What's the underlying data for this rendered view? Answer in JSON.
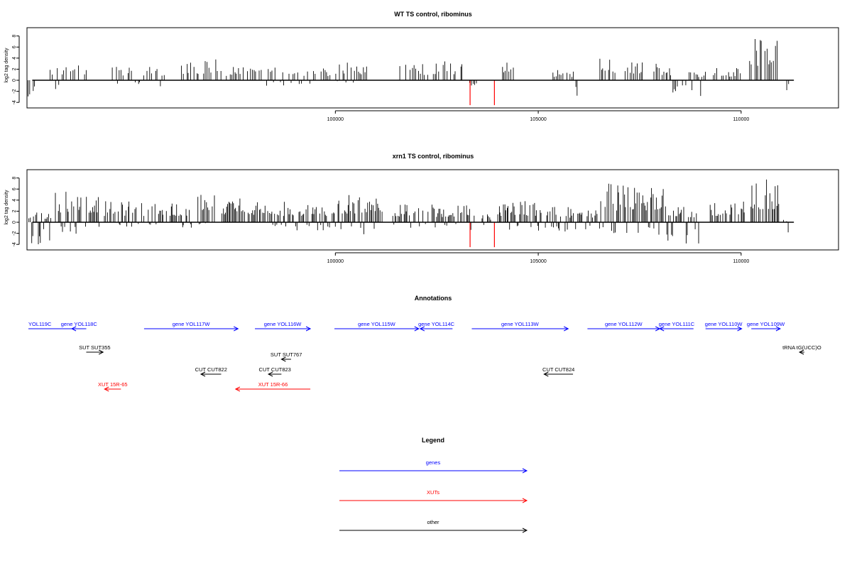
{
  "colors": {
    "gene": "#0000ff",
    "xut": "#ff0000",
    "other": "#000000",
    "highlight": "#ff0000",
    "bar": "#000000"
  },
  "chart_data": [
    {
      "type": "bar",
      "title": "WT TS control, ribominus",
      "ylabel": "log2 tag density",
      "xlim": [
        92400,
        112400
      ],
      "ylim": [
        -5,
        9.5
      ],
      "x_ticks": [
        100000,
        105000,
        110000
      ],
      "x_tick_labels": [
        "100000",
        "105000",
        "110000"
      ],
      "y_ticks": [
        -4,
        -2,
        0,
        2,
        4,
        6,
        8
      ],
      "y_tick_labels": [
        "-4",
        "-2",
        "0",
        "2",
        "4",
        "6",
        "8"
      ],
      "highlight_positions": [
        103320,
        103920
      ],
      "highlight_values": [
        -4.5,
        -4.5
      ],
      "regions": [
        {
          "start": 92420,
          "end": 92620,
          "min": -3.6,
          "max": 0
        },
        {
          "start": 92960,
          "end": 93900,
          "min": -2.5,
          "max": 3.2
        },
        {
          "start": 94500,
          "end": 95800,
          "min": -1.2,
          "max": 2.5
        },
        {
          "start": 96200,
          "end": 97200,
          "min": 0.3,
          "max": 3.8
        },
        {
          "start": 97300,
          "end": 98200,
          "min": 0.2,
          "max": 2.5
        },
        {
          "start": 98300,
          "end": 99900,
          "min": -1.0,
          "max": 2.5
        },
        {
          "start": 100000,
          "end": 100800,
          "min": -0.5,
          "max": 3.5
        },
        {
          "start": 101500,
          "end": 102300,
          "min": 0.5,
          "max": 3.0
        },
        {
          "start": 102400,
          "end": 103200,
          "min": 0.5,
          "max": 3.5
        },
        {
          "start": 103300,
          "end": 103500,
          "min": -1.5,
          "max": 0
        },
        {
          "start": 104100,
          "end": 104500,
          "min": 0.5,
          "max": 3.5
        },
        {
          "start": 105300,
          "end": 105900,
          "min": 0.5,
          "max": 2.0
        },
        {
          "start": 105900,
          "end": 106000,
          "min": -3.2,
          "max": 0
        },
        {
          "start": 106500,
          "end": 107600,
          "min": 0.5,
          "max": 4.0
        },
        {
          "start": 107800,
          "end": 108300,
          "min": 0.5,
          "max": 3.0
        },
        {
          "start": 108300,
          "end": 108700,
          "min": -3.0,
          "max": 0
        },
        {
          "start": 108700,
          "end": 109200,
          "min": -3.0,
          "max": 1.8
        },
        {
          "start": 109300,
          "end": 110000,
          "min": 0.2,
          "max": 2.2
        },
        {
          "start": 110200,
          "end": 110950,
          "min": 0.5,
          "max": 8.5
        },
        {
          "start": 111100,
          "end": 111200,
          "min": -2.0,
          "max": 0
        }
      ]
    },
    {
      "type": "bar",
      "title": "xrn1 TS control, ribominus",
      "ylabel": "log2 tag density",
      "xlim": [
        92400,
        112400
      ],
      "ylim": [
        -5,
        9.5
      ],
      "x_ticks": [
        100000,
        105000,
        110000
      ],
      "x_tick_labels": [
        "100000",
        "105000",
        "110000"
      ],
      "y_ticks": [
        -4,
        -2,
        0,
        2,
        4,
        6,
        8
      ],
      "y_tick_labels": [
        "-4",
        "-2",
        "0",
        "2",
        "4",
        "6",
        "8"
      ],
      "highlight_positions": [
        103320,
        103920
      ],
      "highlight_values": [
        -4.5,
        -4.5
      ],
      "regions": [
        {
          "start": 92420,
          "end": 93000,
          "min": -4.0,
          "max": 2.0
        },
        {
          "start": 93100,
          "end": 94200,
          "min": -2.5,
          "max": 5.8
        },
        {
          "start": 94300,
          "end": 96500,
          "min": -1.0,
          "max": 3.8
        },
        {
          "start": 96600,
          "end": 97100,
          "min": -0.5,
          "max": 5.5
        },
        {
          "start": 97200,
          "end": 98400,
          "min": 0.2,
          "max": 4.5
        },
        {
          "start": 98400,
          "end": 99800,
          "min": -1.5,
          "max": 3.8
        },
        {
          "start": 99800,
          "end": 101200,
          "min": -2.5,
          "max": 5.2
        },
        {
          "start": 101400,
          "end": 103300,
          "min": -1.0,
          "max": 3.2
        },
        {
          "start": 103300,
          "end": 103500,
          "min": -3.0,
          "max": 2.5
        },
        {
          "start": 103600,
          "end": 103900,
          "min": -1.0,
          "max": 1.5
        },
        {
          "start": 104000,
          "end": 105200,
          "min": -1.5,
          "max": 3.8
        },
        {
          "start": 105200,
          "end": 106500,
          "min": -2.0,
          "max": 2.8
        },
        {
          "start": 106500,
          "end": 108100,
          "min": -2.5,
          "max": 7.0
        },
        {
          "start": 108100,
          "end": 109000,
          "min": -4.2,
          "max": 3.0
        },
        {
          "start": 109200,
          "end": 110100,
          "min": 0.2,
          "max": 3.8
        },
        {
          "start": 110200,
          "end": 110950,
          "min": 0.5,
          "max": 7.8
        },
        {
          "start": 111000,
          "end": 111200,
          "min": -4.0,
          "max": 0.5
        }
      ]
    }
  ],
  "annotations": {
    "title": "Annotations",
    "items": [
      {
        "label": "YOL119C",
        "kind": "gene",
        "start": 92000,
        "end": 93200,
        "dir": "none",
        "row": 0,
        "label_at": "start"
      },
      {
        "label": "gene YOL118C",
        "kind": "gene",
        "start": 92900,
        "end": 93200,
        "dir": "left",
        "row": 0,
        "label_at": "center"
      },
      {
        "label": "gene YOL117W",
        "kind": "gene",
        "start": 94400,
        "end": 96350,
        "dir": "right",
        "row": 0,
        "label_at": "center"
      },
      {
        "label": "gene YOL116W",
        "kind": "gene",
        "start": 96700,
        "end": 97850,
        "dir": "right",
        "row": 0,
        "label_at": "center"
      },
      {
        "label": "gene YOL115W",
        "kind": "gene",
        "start": 98350,
        "end": 100100,
        "dir": "right",
        "row": 0,
        "label_at": "center"
      },
      {
        "label": "gene YOL114C",
        "kind": "gene",
        "start": 100130,
        "end": 100800,
        "dir": "left",
        "row": 0,
        "label_at": "center"
      },
      {
        "label": "gene YOL113W",
        "kind": "gene",
        "start": 101200,
        "end": 103200,
        "dir": "right",
        "row": 0,
        "label_at": "center"
      },
      {
        "label": "gene YOL112W",
        "kind": "gene",
        "start": 103600,
        "end": 105100,
        "dir": "right",
        "row": 0,
        "label_at": "center"
      },
      {
        "label": "gene YOL111C",
        "kind": "gene",
        "start": 105100,
        "end": 105800,
        "dir": "left",
        "row": 0,
        "label_at": "center"
      },
      {
        "label": "gene YOL110W",
        "kind": "gene",
        "start": 106050,
        "end": 106800,
        "dir": "right",
        "row": 0,
        "label_at": "center"
      },
      {
        "label": "gene YOL109W",
        "kind": "gene",
        "start": 107000,
        "end": 107600,
        "dir": "right",
        "row": 0,
        "label_at": "center"
      },
      {
        "label": "SUT SUT355",
        "kind": "other",
        "start": 93200,
        "end": 93550,
        "dir": "right",
        "row": 1,
        "label_at": "center"
      },
      {
        "label": "tRNA tG(UCC)O",
        "kind": "other",
        "start": 108000,
        "end": 108100,
        "dir": "left",
        "row": 1,
        "label_at": "center"
      },
      {
        "label": "SUT SUT767",
        "kind": "other",
        "start": 97250,
        "end": 97450,
        "dir": "left",
        "row": 2,
        "label_at": "center"
      },
      {
        "label": "CUT CUT822",
        "kind": "other",
        "start": 95580,
        "end": 96000,
        "dir": "left",
        "row": 3,
        "label_at": "center"
      },
      {
        "label": "CUT CUT823",
        "kind": "other",
        "start": 96980,
        "end": 97250,
        "dir": "left",
        "row": 3,
        "label_at": "center"
      },
      {
        "label": "CUT CUT824",
        "kind": "other",
        "start": 102700,
        "end": 103300,
        "dir": "left",
        "row": 3,
        "label_at": "center"
      },
      {
        "label": "XUT 15R-65",
        "kind": "xut",
        "start": 93580,
        "end": 93920,
        "dir": "left",
        "row": 4,
        "label_at": "center"
      },
      {
        "label": "XUT 15R-66",
        "kind": "xut",
        "start": 96300,
        "end": 97850,
        "dir": "left",
        "row": 4,
        "label_at": "center"
      }
    ]
  },
  "legend": {
    "title": "Legend",
    "items": [
      {
        "label": "genes",
        "kind": "gene"
      },
      {
        "label": "XUTs",
        "kind": "xut"
      },
      {
        "label": "other",
        "kind": "other"
      }
    ]
  }
}
